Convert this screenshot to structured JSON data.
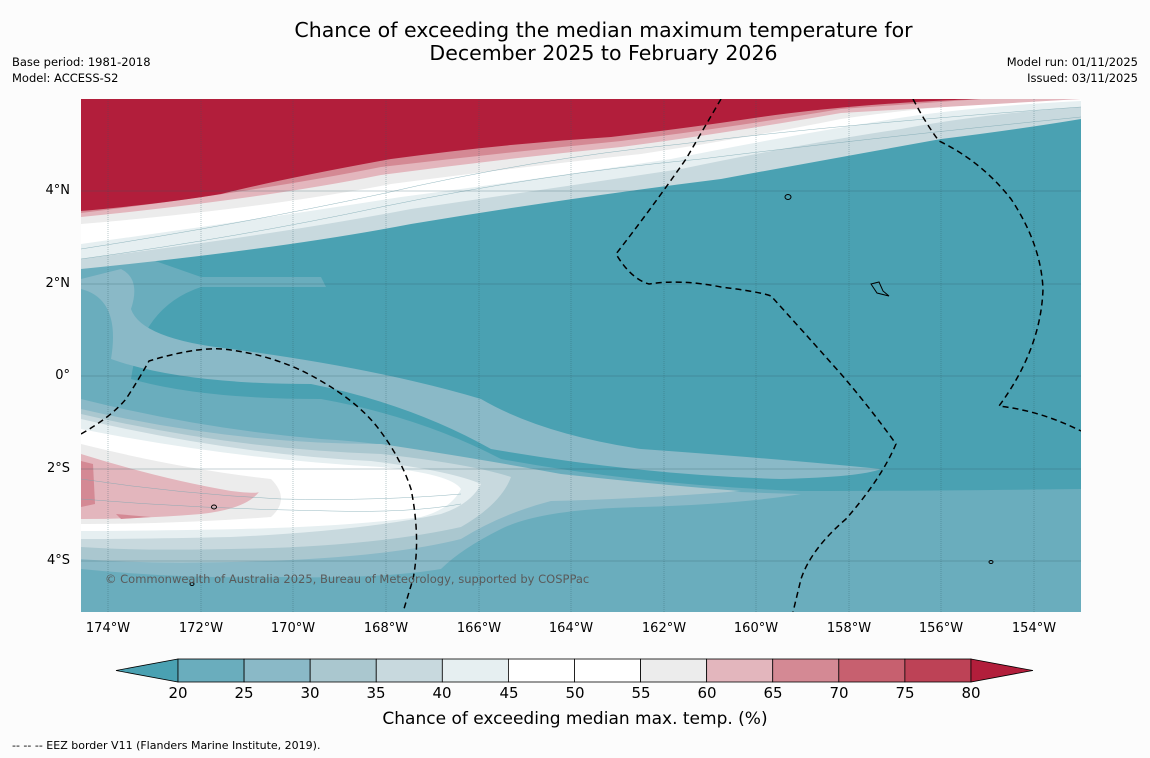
{
  "title": {
    "line1": "Chance of exceeding the median maximum temperature for",
    "line2": "December 2025 to February 2026"
  },
  "meta_left": {
    "base_period": "Base period: 1981-2018",
    "model": "Model: ACCESS-S2"
  },
  "meta_right": {
    "model_run": "Model run: 01/11/2025",
    "issued": "Issued: 03/11/2025"
  },
  "map": {
    "lat_labels": [
      "4°N",
      "2°N",
      "0°",
      "2°S",
      "4°S"
    ],
    "lon_labels": [
      "174°W",
      "172°W",
      "170°W",
      "168°W",
      "166°W",
      "164°W",
      "162°W",
      "160°W",
      "158°W",
      "156°W",
      "154°W"
    ],
    "copyright": "© Commonwealth of Australia 2025, Bureau of Meteorology, supported by COSPPac",
    "ocean_color": "#4aa1b2"
  },
  "colorbar": {
    "ticks": [
      "20",
      "25",
      "30",
      "35",
      "40",
      "45",
      "50",
      "55",
      "60",
      "65",
      "70",
      "75",
      "80"
    ],
    "colors": [
      "#4aa1b2",
      "#6aadbd",
      "#8ab9c7",
      "#aac7cf",
      "#c8d9de",
      "#e6eff1",
      "#ffffff",
      "#ffffff",
      "#ececec",
      "#e3b6bd",
      "#d48994",
      "#c7606f",
      "#bd4256",
      "#b21e3b"
    ],
    "label": "Chance of exceeding median max. temp. (%)"
  },
  "legend_note": "--  --  -- EEZ border V11 (Flanders Marine Institute, 2019)."
}
